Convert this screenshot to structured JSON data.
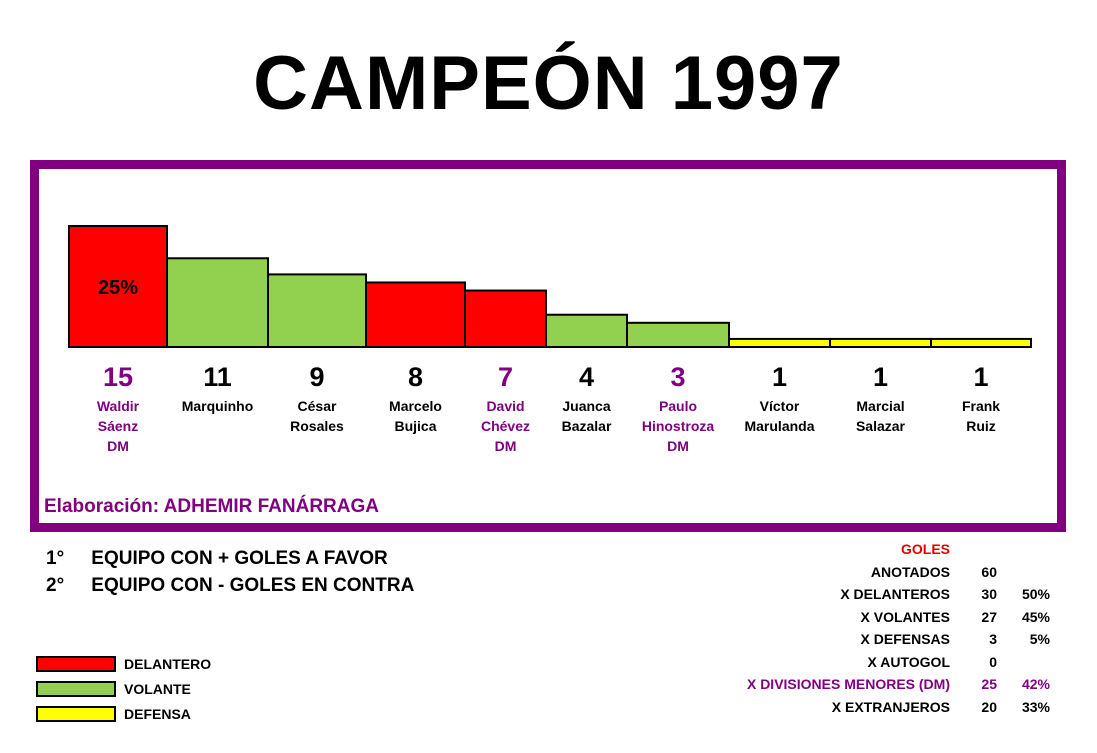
{
  "title": "CAMPEÓN 1997",
  "credit": "Elaboración: ADHEMIR FANÁRRAGA",
  "honors": [
    {
      "pos": "1°",
      "text": "EQUIPO CON + GOLES A FAVOR"
    },
    {
      "pos": "2°",
      "text": "EQUIPO CON - GOLES EN CONTRA"
    }
  ],
  "legend": [
    {
      "label": "DELANTERO",
      "color": "#ff0000"
    },
    {
      "label": "VOLANTE",
      "color": "#92d050"
    },
    {
      "label": "DEFENSA",
      "color": "#ffff00"
    }
  ],
  "goals_table": {
    "header": "GOLES",
    "rows": [
      {
        "label": "ANOTADOS",
        "value": "60",
        "pct": "",
        "highlight": false
      },
      {
        "label": "X DELANTEROS",
        "value": "30",
        "pct": "50%",
        "highlight": false
      },
      {
        "label": "X VOLANTES",
        "value": "27",
        "pct": "45%",
        "highlight": false
      },
      {
        "label": "X DEFENSAS",
        "value": "3",
        "pct": "5%",
        "highlight": false
      },
      {
        "label": "X AUTOGOL",
        "value": "0",
        "pct": "",
        "highlight": false
      },
      {
        "label": "X DIVISIONES MENORES (DM)",
        "value": "25",
        "pct": "42%",
        "highlight": true
      },
      {
        "label": "X EXTRANJEROS",
        "value": "20",
        "pct": "33%",
        "highlight": false
      }
    ]
  },
  "chart_data": {
    "type": "bar",
    "title": "",
    "ylim": [
      0,
      15
    ],
    "annotation": {
      "index": 0,
      "text": "25%"
    },
    "colors": {
      "DELANTERO": "#ff0000",
      "VOLANTE": "#92d050",
      "DEFENSA": "#ffff00",
      "dm_text": "#800080"
    },
    "categories": [
      "Waldir Sáenz DM",
      "Marquinho",
      "César Rosales",
      "Marcelo Bujica",
      "David Chévez DM",
      "Juanca Bazalar",
      "Paulo Hinostroza DM",
      "Víctor Marulanda",
      "Marcial Salazar",
      "Frank Ruiz"
    ],
    "bars": [
      {
        "name": [
          "Waldir",
          "Sáenz",
          "DM"
        ],
        "value": 15,
        "role": "DELANTERO",
        "dm": true
      },
      {
        "name": [
          "Marquinho"
        ],
        "value": 11,
        "role": "VOLANTE",
        "dm": false
      },
      {
        "name": [
          "César",
          "Rosales"
        ],
        "value": 9,
        "role": "VOLANTE",
        "dm": false
      },
      {
        "name": [
          "Marcelo",
          "Bujica"
        ],
        "value": 8,
        "role": "DELANTERO",
        "dm": false
      },
      {
        "name": [
          "David",
          "Chévez",
          "DM"
        ],
        "value": 7,
        "role": "DELANTERO",
        "dm": true
      },
      {
        "name": [
          "Juanca",
          "Bazalar"
        ],
        "value": 4,
        "role": "VOLANTE",
        "dm": false
      },
      {
        "name": [
          "Paulo",
          "Hinostroza",
          "DM"
        ],
        "value": 3,
        "role": "VOLANTE",
        "dm": true
      },
      {
        "name": [
          "Víctor",
          "Marulanda"
        ],
        "value": 1,
        "role": "DEFENSA",
        "dm": false
      },
      {
        "name": [
          "Marcial",
          "Salazar"
        ],
        "value": 1,
        "role": "DEFENSA",
        "dm": false
      },
      {
        "name": [
          "Frank",
          "Ruiz"
        ],
        "value": 1,
        "role": "DEFENSA",
        "dm": false
      }
    ]
  }
}
